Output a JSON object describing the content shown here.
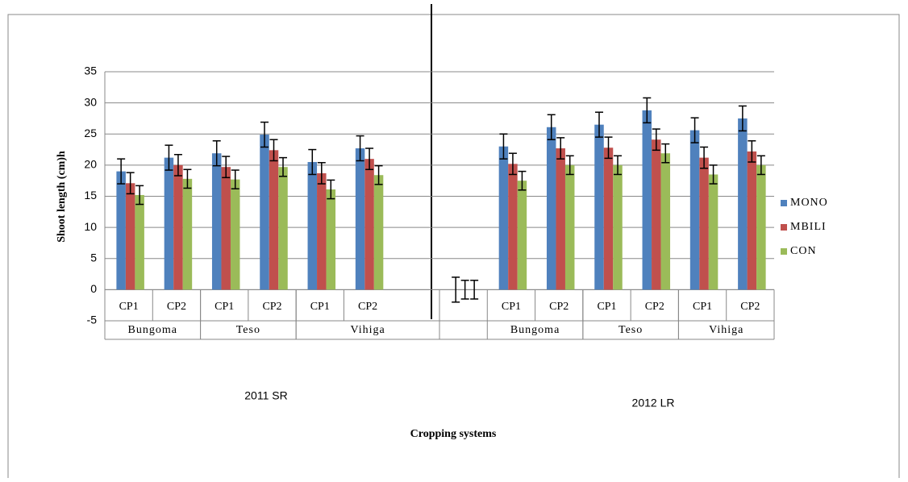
{
  "chart_data": {
    "type": "bar",
    "ylabel": "Shoot length (cm)h",
    "xlabel": "Cropping systems",
    "seasons": [
      "2011 SR",
      "2012 LR"
    ],
    "categories": [
      "CP1",
      "CP2",
      "CP1",
      "CP2",
      "CP1",
      "CP2",
      null,
      null,
      "CP1",
      "CP2",
      "CP1",
      "CP2",
      "CP1",
      "CP2"
    ],
    "groups": [
      "Bungoma",
      "Bungoma",
      "Teso",
      "Teso",
      "Vihiga",
      "Vihiga",
      "Vihiga",
      null,
      "Bungoma",
      "Bungoma",
      "Teso",
      "Teso",
      "Vihiga",
      "Vihiga"
    ],
    "series": [
      {
        "name": "MONO",
        "color": "#4f81bd",
        "values": [
          19,
          21.2,
          21.9,
          24.9,
          20.5,
          22.7,
          null,
          0,
          23,
          26.1,
          26.5,
          28.8,
          25.6,
          27.5
        ],
        "errors": [
          2,
          2,
          2,
          2,
          2,
          2,
          null,
          2,
          2,
          2,
          2,
          2,
          2,
          2
        ]
      },
      {
        "name": "MBILI",
        "color": "#c0504d",
        "values": [
          17.1,
          20,
          19.7,
          22.4,
          18.7,
          21,
          null,
          0,
          20.2,
          22.7,
          22.8,
          24.1,
          21.2,
          22.2
        ],
        "errors": [
          1.7,
          1.7,
          1.7,
          1.7,
          1.7,
          1.7,
          null,
          1.5,
          1.7,
          1.7,
          1.7,
          1.7,
          1.7,
          1.7
        ]
      },
      {
        "name": "CON",
        "color": "#9bbb59",
        "values": [
          15.2,
          17.8,
          17.7,
          19.7,
          16.1,
          18.4,
          null,
          0,
          17.5,
          20,
          20,
          21.9,
          18.5,
          20
        ],
        "errors": [
          1.5,
          1.5,
          1.5,
          1.5,
          1.5,
          1.5,
          null,
          1.5,
          1.5,
          1.5,
          1.5,
          1.5,
          1.5,
          1.5
        ]
      }
    ],
    "ylim": [
      -5,
      35
    ],
    "yticks": [
      -5,
      0,
      5,
      10,
      15,
      20,
      25,
      30,
      35
    ],
    "grid": true,
    "legend": "right"
  }
}
